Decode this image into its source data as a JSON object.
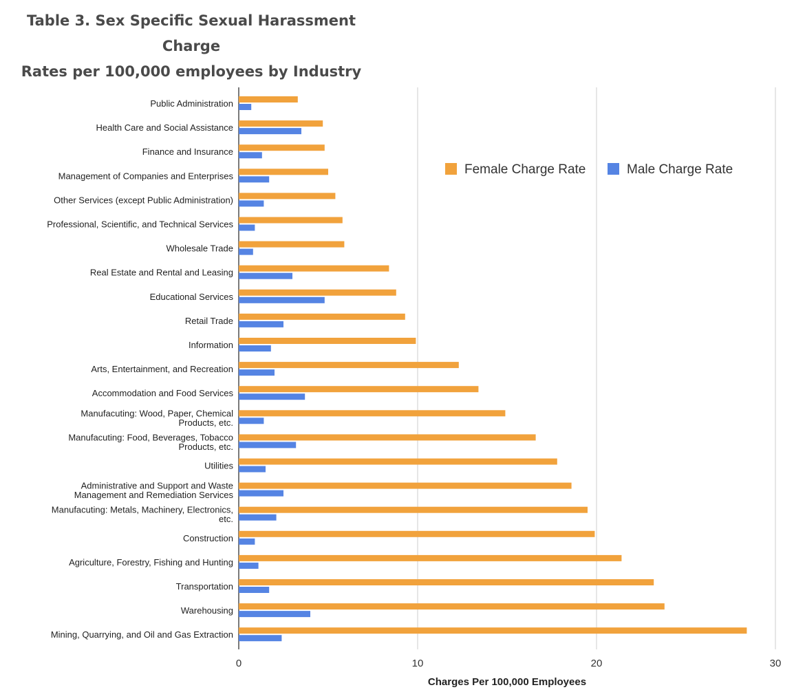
{
  "title": {
    "line1": "Table 3. Sex Specific Sexual Harassment Charge",
    "line2": "Rates per 100,000 employees by Industry"
  },
  "chart_data": {
    "type": "bar",
    "orientation": "horizontal",
    "title": "Table 3. Sex Specific Sexual Harassment Charge Rates per 100,000 employees by Industry",
    "xlabel": "Charges Per 100,000 Employees",
    "ylabel": "",
    "xlim": [
      0,
      30
    ],
    "xticks": [
      0,
      10,
      20,
      30
    ],
    "grid": true,
    "legend_position": "top-right",
    "categories": [
      "Public Administration",
      "Health Care and Social Assistance",
      "Finance and Insurance",
      "Management of Companies and Enterprises",
      "Other Services (except Public Administration)",
      "Professional, Scientific, and Technical Services",
      "Wholesale Trade",
      "Real Estate and Rental and Leasing",
      "Educational Services",
      "Retail Trade",
      "Information",
      "Arts, Entertainment, and Recreation",
      "Accommodation and Food Services",
      "Manufacuting: Wood, Paper, Chemical Products, etc.",
      "Manufacuting: Food, Beverages, Tobacco Products, etc.",
      "Utilities",
      "Administrative and Support and Waste Management and Remediation Services",
      "Manufacuting: Metals, Machinery, Electronics, etc.",
      "Construction",
      "Agriculture, Forestry, Fishing and Hunting",
      "Transportation",
      "Warehousing",
      "Mining, Quarrying, and Oil and Gas Extraction"
    ],
    "category_label_lines": [
      [
        "Public Administration"
      ],
      [
        "Health Care and Social Assistance"
      ],
      [
        "Finance and Insurance"
      ],
      [
        "Management of Companies and Enterprises"
      ],
      [
        "Other Services (except Public Administration)"
      ],
      [
        "Professional, Scientific, and Technical Services"
      ],
      [
        "Wholesale Trade"
      ],
      [
        "Real Estate and Rental and Leasing"
      ],
      [
        "Educational Services"
      ],
      [
        "Retail Trade"
      ],
      [
        "Information"
      ],
      [
        "Arts, Entertainment, and Recreation"
      ],
      [
        "Accommodation and Food Services"
      ],
      [
        "Manufacuting: Wood, Paper, Chemical",
        "Products, etc."
      ],
      [
        "Manufacuting: Food, Beverages, Tobacco",
        "Products, etc."
      ],
      [
        "Utilities"
      ],
      [
        "Administrative and Support and Waste",
        "Management and Remediation Services"
      ],
      [
        "Manufacuting: Metals, Machinery, Electronics,",
        "etc."
      ],
      [
        "Construction"
      ],
      [
        "Agriculture, Forestry, Fishing and Hunting"
      ],
      [
        "Transportation"
      ],
      [
        "Warehousing"
      ],
      [
        "Mining, Quarrying, and Oil and Gas Extraction"
      ]
    ],
    "series": [
      {
        "name": "Female Charge Rate",
        "color": "#f1a23c",
        "values": [
          3.3,
          4.7,
          4.8,
          5.0,
          5.4,
          5.8,
          5.9,
          8.4,
          8.8,
          9.3,
          9.9,
          12.3,
          13.4,
          14.9,
          16.6,
          17.8,
          18.6,
          19.5,
          19.9,
          21.4,
          23.2,
          23.8,
          28.4
        ]
      },
      {
        "name": "Male Charge Rate",
        "color": "#5584e3",
        "values": [
          0.7,
          3.5,
          1.3,
          1.7,
          1.4,
          0.9,
          0.8,
          3.0,
          4.8,
          2.5,
          1.8,
          2.0,
          3.7,
          1.4,
          3.2,
          1.5,
          2.5,
          2.1,
          0.9,
          1.1,
          1.7,
          4.0,
          2.4
        ]
      }
    ]
  }
}
